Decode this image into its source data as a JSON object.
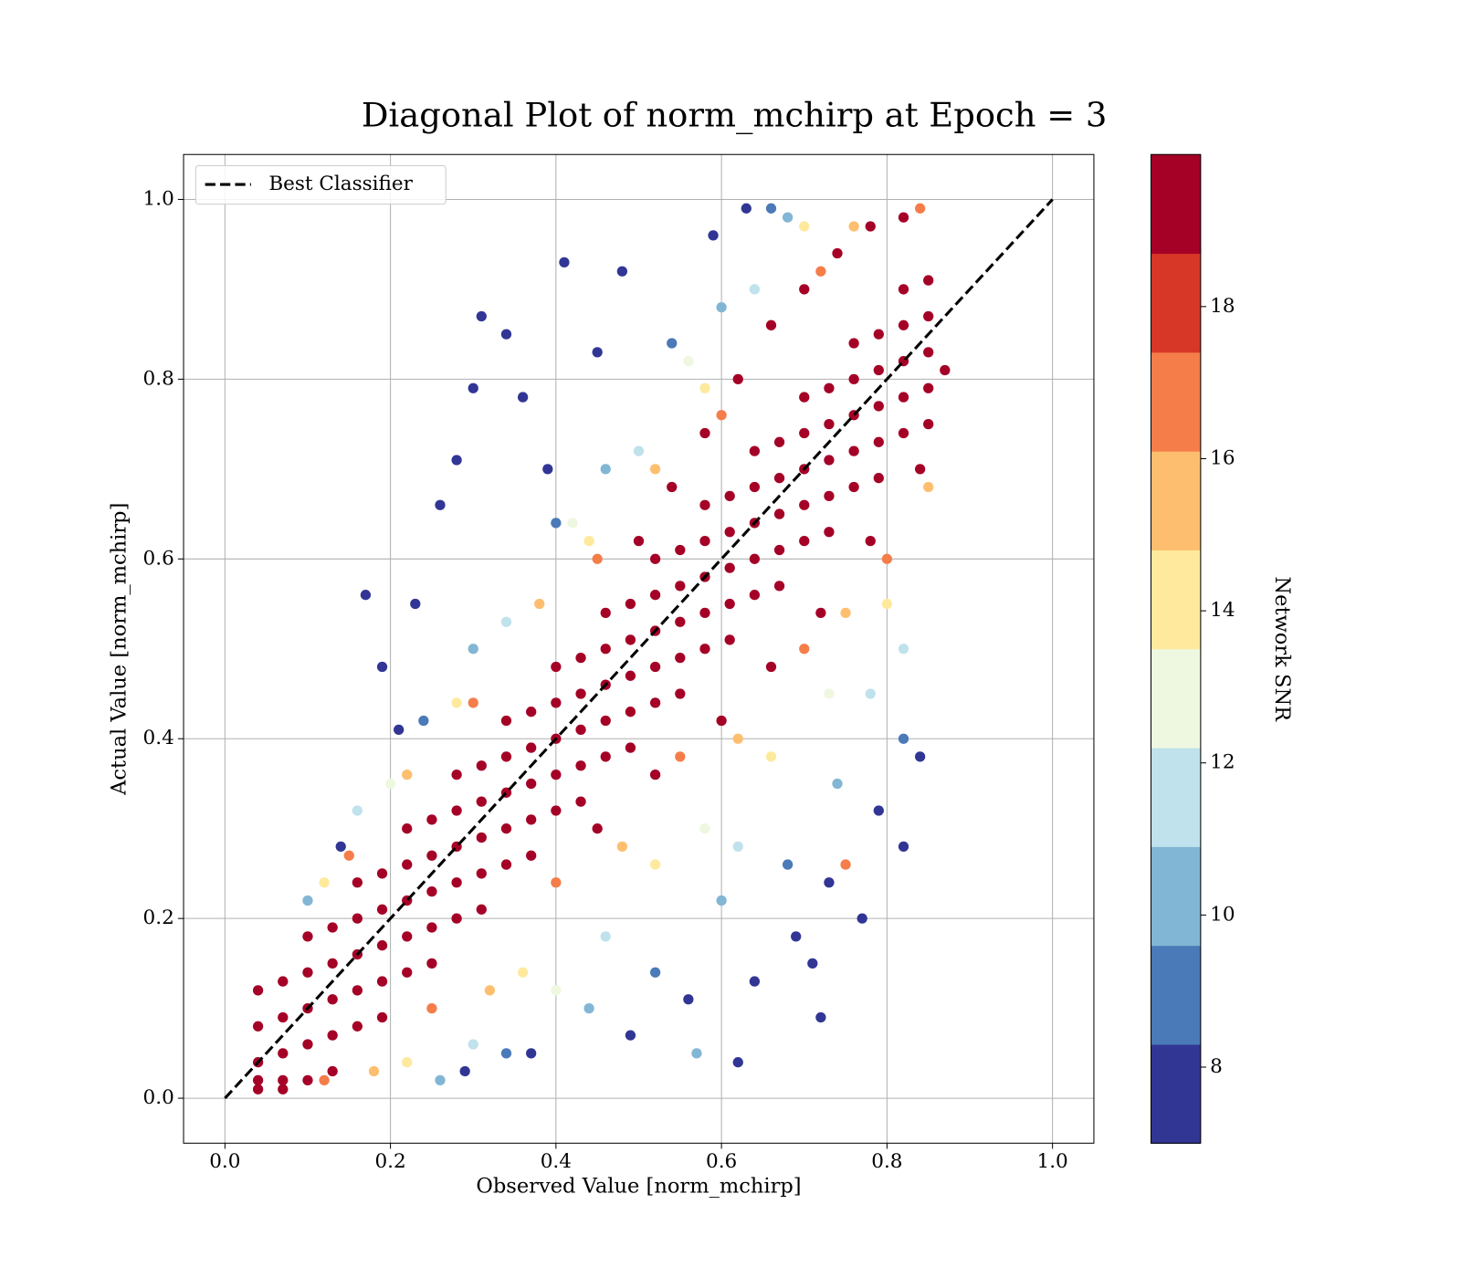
{
  "chart_data": {
    "type": "scatter",
    "title": "Diagonal Plot of norm_mchirp at Epoch = 3",
    "x_label": "Observed Value [norm_mchirp]",
    "y_label": "Actual Value [norm_mchirp]",
    "xlim": [
      -0.05,
      1.05
    ],
    "ylim": [
      -0.05,
      1.05
    ],
    "xticks": [
      {
        "value": 0,
        "label": "0.0"
      },
      0.2,
      0.4,
      0.6,
      0.8,
      {
        "value": 1,
        "label": "1.0"
      }
    ],
    "yticks": [
      {
        "value": 0,
        "label": "0.0"
      },
      0.2,
      0.4,
      0.6,
      0.8,
      {
        "value": 1,
        "label": "1.0"
      }
    ],
    "grid": true,
    "legend": "upper left",
    "reference_line": {
      "name": "Best Classifier",
      "x": [
        0,
        1
      ],
      "y": [
        0,
        1
      ],
      "color": "#000000",
      "style": "dashed"
    },
    "colorbar": {
      "label": "Network SNR",
      "lim": [
        7,
        20
      ],
      "ticks": [
        8,
        10,
        12,
        14,
        16,
        18
      ],
      "boundaries": [
        7,
        8.3,
        9.6,
        10.9,
        12.2,
        13.5,
        14.8,
        16.1,
        17.4,
        18.7,
        20
      ],
      "colors": [
        "#313695",
        "#4a7ab7",
        "#82b6d5",
        "#bfe2ec",
        "#eef8e0",
        "#fee99d",
        "#fdbf6f",
        "#f57d4a",
        "#d73727",
        "#a50026"
      ]
    },
    "series": [
      {
        "snr": 17,
        "x": [
          0.15,
          0.3,
          0.45,
          0.6,
          0.72,
          0.84,
          0.25,
          0.4,
          0.55,
          0.7,
          0.8,
          0.12,
          0.75
        ],
        "values": [
          0.27,
          0.44,
          0.6,
          0.76,
          0.92,
          0.99,
          0.1,
          0.24,
          0.38,
          0.5,
          0.6,
          0.02,
          0.26
        ]
      },
      {
        "snr": 15.5,
        "x": [
          0.22,
          0.38,
          0.52,
          0.66,
          0.76,
          0.32,
          0.48,
          0.62,
          0.75,
          0.85,
          0.18
        ],
        "values": [
          0.36,
          0.55,
          0.7,
          0.86,
          0.97,
          0.12,
          0.28,
          0.4,
          0.54,
          0.68,
          0.03
        ]
      },
      {
        "snr": 14,
        "x": [
          0.12,
          0.28,
          0.44,
          0.58,
          0.7,
          0.36,
          0.52,
          0.66,
          0.8,
          0.22
        ],
        "values": [
          0.24,
          0.44,
          0.62,
          0.79,
          0.97,
          0.14,
          0.26,
          0.38,
          0.55,
          0.04
        ]
      },
      {
        "snr": 12.8,
        "x": [
          0.2,
          0.42,
          0.56,
          0.4,
          0.58,
          0.73
        ],
        "values": [
          0.35,
          0.64,
          0.82,
          0.12,
          0.3,
          0.45
        ]
      },
      {
        "snr": 11.5,
        "x": [
          0.16,
          0.34,
          0.5,
          0.64,
          0.3,
          0.46,
          0.62,
          0.78,
          0.82
        ],
        "values": [
          0.32,
          0.53,
          0.72,
          0.9,
          0.06,
          0.18,
          0.28,
          0.45,
          0.5
        ]
      },
      {
        "snr": 10.2,
        "x": [
          0.1,
          0.3,
          0.46,
          0.6,
          0.68,
          0.26,
          0.44,
          0.6,
          0.74,
          0.57
        ],
        "values": [
          0.22,
          0.5,
          0.7,
          0.88,
          0.98,
          0.02,
          0.1,
          0.22,
          0.35,
          0.05
        ]
      },
      {
        "snr": 8.9,
        "x": [
          0.24,
          0.4,
          0.54,
          0.66,
          0.34,
          0.52,
          0.68,
          0.82
        ],
        "values": [
          0.42,
          0.64,
          0.84,
          0.99,
          0.05,
          0.14,
          0.26,
          0.4
        ]
      },
      {
        "snr": 7.5,
        "x": [
          0.17,
          0.19,
          0.31,
          0.3,
          0.41,
          0.34,
          0.28,
          0.26,
          0.23,
          0.36,
          0.45,
          0.48,
          0.59,
          0.63,
          0.39,
          0.21,
          0.14,
          0.37,
          0.29,
          0.49,
          0.56,
          0.64,
          0.71,
          0.72,
          0.62,
          0.77,
          0.84,
          0.82,
          0.73,
          0.79,
          0.69
        ],
        "values": [
          0.56,
          0.48,
          0.87,
          0.79,
          0.93,
          0.85,
          0.71,
          0.66,
          0.55,
          0.78,
          0.83,
          0.92,
          0.96,
          0.99,
          0.7,
          0.41,
          0.28,
          0.05,
          0.03,
          0.07,
          0.11,
          0.13,
          0.15,
          0.09,
          0.04,
          0.2,
          0.38,
          0.28,
          0.24,
          0.32,
          0.18
        ]
      },
      {
        "snr": 19.5,
        "x": [
          0.62,
          0.66,
          0.7,
          0.74,
          0.78,
          0.82,
          0.58,
          0.54,
          0.5,
          0.6,
          0.66,
          0.72,
          0.78,
          0.84,
          0.87,
          0.52,
          0.45,
          0.04,
          0.04,
          0.04,
          0.04,
          0.04,
          0.07,
          0.07,
          0.07,
          0.07,
          0.07,
          0.1,
          0.1,
          0.1,
          0.1,
          0.1,
          0.13,
          0.13,
          0.13,
          0.13,
          0.13,
          0.16,
          0.16,
          0.16,
          0.16,
          0.16,
          0.19,
          0.19,
          0.19,
          0.19,
          0.19,
          0.22,
          0.22,
          0.22,
          0.22,
          0.22,
          0.25,
          0.25,
          0.25,
          0.25,
          0.25,
          0.28,
          0.28,
          0.28,
          0.28,
          0.28,
          0.31,
          0.31,
          0.31,
          0.31,
          0.31,
          0.34,
          0.34,
          0.34,
          0.34,
          0.34,
          0.37,
          0.37,
          0.37,
          0.37,
          0.37,
          0.4,
          0.4,
          0.4,
          0.4,
          0.4,
          0.43,
          0.43,
          0.43,
          0.43,
          0.43,
          0.46,
          0.46,
          0.46,
          0.46,
          0.46,
          0.49,
          0.49,
          0.49,
          0.49,
          0.49,
          0.52,
          0.52,
          0.52,
          0.52,
          0.52,
          0.55,
          0.55,
          0.55,
          0.55,
          0.55,
          0.58,
          0.58,
          0.58,
          0.58,
          0.58,
          0.61,
          0.61,
          0.61,
          0.61,
          0.61,
          0.64,
          0.64,
          0.64,
          0.64,
          0.64,
          0.67,
          0.67,
          0.67,
          0.67,
          0.67,
          0.7,
          0.7,
          0.7,
          0.7,
          0.7,
          0.73,
          0.73,
          0.73,
          0.73,
          0.73,
          0.76,
          0.76,
          0.76,
          0.76,
          0.76,
          0.79,
          0.79,
          0.79,
          0.79,
          0.79,
          0.82,
          0.82,
          0.82,
          0.82,
          0.82,
          0.85,
          0.85,
          0.85,
          0.85,
          0.85
        ],
        "values": [
          0.8,
          0.86,
          0.9,
          0.94,
          0.97,
          0.98,
          0.74,
          0.68,
          0.62,
          0.42,
          0.48,
          0.54,
          0.62,
          0.7,
          0.81,
          0.36,
          0.3,
          0.01,
          0.02,
          0.04,
          0.08,
          0.12,
          0.02,
          0.01,
          0.05,
          0.09,
          0.13,
          0.02,
          0.06,
          0.1,
          0.14,
          0.18,
          0.03,
          0.07,
          0.11,
          0.15,
          0.19,
          0.08,
          0.12,
          0.16,
          0.2,
          0.24,
          0.09,
          0.13,
          0.17,
          0.21,
          0.25,
          0.14,
          0.18,
          0.22,
          0.26,
          0.3,
          0.15,
          0.19,
          0.23,
          0.27,
          0.31,
          0.2,
          0.24,
          0.28,
          0.32,
          0.36,
          0.21,
          0.25,
          0.29,
          0.33,
          0.37,
          0.26,
          0.3,
          0.34,
          0.38,
          0.42,
          0.27,
          0.31,
          0.35,
          0.39,
          0.43,
          0.32,
          0.36,
          0.4,
          0.44,
          0.48,
          0.33,
          0.37,
          0.41,
          0.45,
          0.49,
          0.38,
          0.42,
          0.46,
          0.5,
          0.54,
          0.39,
          0.43,
          0.47,
          0.51,
          0.55,
          0.44,
          0.48,
          0.52,
          0.56,
          0.6,
          0.45,
          0.49,
          0.53,
          0.57,
          0.61,
          0.5,
          0.54,
          0.58,
          0.62,
          0.66,
          0.51,
          0.55,
          0.59,
          0.63,
          0.67,
          0.56,
          0.6,
          0.64,
          0.68,
          0.72,
          0.57,
          0.61,
          0.65,
          0.69,
          0.73,
          0.62,
          0.66,
          0.7,
          0.74,
          0.78,
          0.63,
          0.67,
          0.71,
          0.75,
          0.79,
          0.68,
          0.72,
          0.76,
          0.8,
          0.84,
          0.69,
          0.73,
          0.77,
          0.81,
          0.85,
          0.74,
          0.78,
          0.82,
          0.86,
          0.9,
          0.75,
          0.79,
          0.83,
          0.87,
          0.91
        ]
      }
    ]
  }
}
